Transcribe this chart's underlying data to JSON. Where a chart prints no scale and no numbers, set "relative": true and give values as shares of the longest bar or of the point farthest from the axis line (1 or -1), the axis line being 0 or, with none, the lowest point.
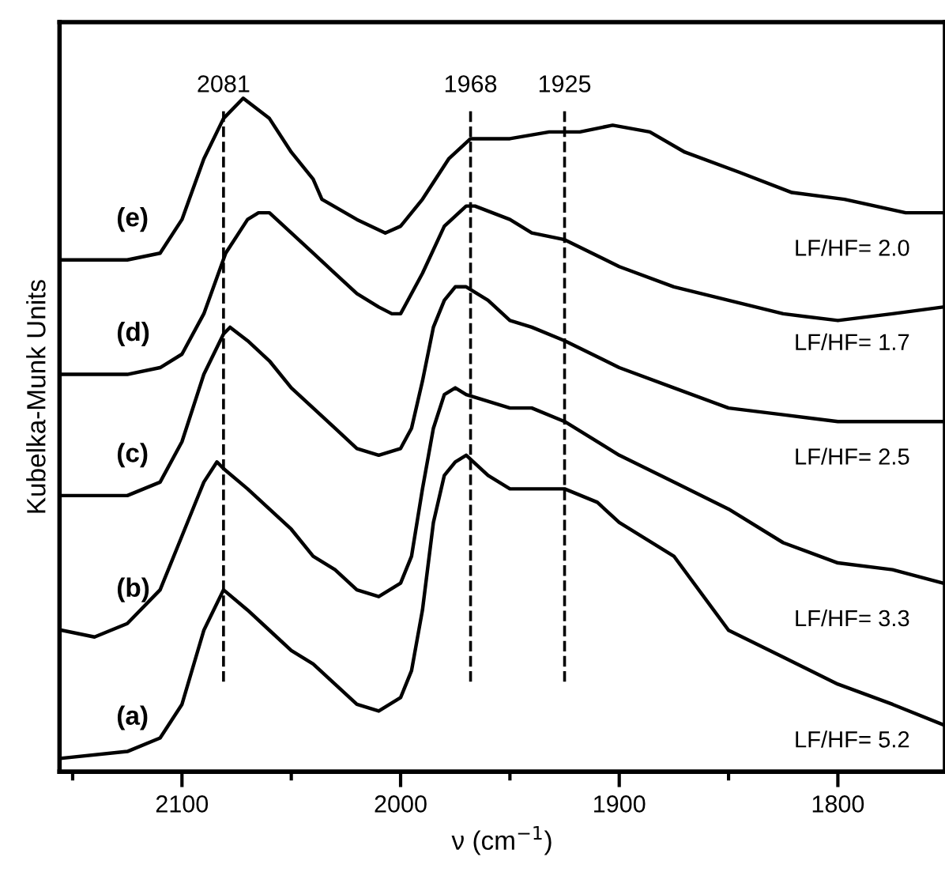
{
  "chart_data": {
    "type": "line",
    "relative": true,
    "xlabel": "ν (cm$^{−1}$)",
    "ylabel": "Kubelka-Munk Units",
    "xlim": [
      2156,
      1751
    ],
    "xticks": [
      {
        "value": 2150,
        "label": null
      },
      2100,
      {
        "value": 2050,
        "label": null
      },
      2000,
      {
        "value": 1950,
        "label": null
      },
      1900,
      {
        "value": 1850,
        "label": null
      },
      1800
    ],
    "tick_labels": "x",
    "grid": false,
    "legend": false,
    "marker": "none",
    "line_style": "solid",
    "series": [
      {
        "name": "(a)",
        "color": "#000000",
        "x": [
          2155,
          2125,
          2110,
          2100,
          2090,
          2081,
          2070,
          2060,
          2050,
          2040,
          2030,
          2020,
          2010,
          2000,
          1995,
          1990,
          1985,
          1980,
          1975,
          1970,
          1960,
          1950,
          1940,
          1925,
          1910,
          1900,
          1875,
          1850,
          1825,
          1800,
          1775,
          1752
        ],
        "values": [
          0.02,
          0.03,
          0.05,
          0.1,
          0.21,
          0.27,
          0.24,
          0.21,
          0.18,
          0.16,
          0.13,
          0.1,
          0.09,
          0.11,
          0.15,
          0.24,
          0.37,
          0.44,
          0.46,
          0.47,
          0.44,
          0.42,
          0.42,
          0.42,
          0.4,
          0.37,
          0.32,
          0.21,
          0.17,
          0.13,
          0.1,
          0.07
        ]
      },
      {
        "name": "(b)",
        "color": "#000000",
        "x": [
          2155,
          2140,
          2125,
          2110,
          2100,
          2090,
          2084,
          2081,
          2070,
          2060,
          2050,
          2040,
          2030,
          2020,
          2010,
          2000,
          1995,
          1990,
          1985,
          1980,
          1975,
          1970,
          1960,
          1950,
          1940,
          1925,
          1900,
          1875,
          1850,
          1825,
          1800,
          1775,
          1752
        ],
        "values": [
          0.21,
          0.2,
          0.22,
          0.27,
          0.35,
          0.43,
          0.46,
          0.45,
          0.42,
          0.39,
          0.36,
          0.32,
          0.3,
          0.27,
          0.26,
          0.28,
          0.32,
          0.42,
          0.51,
          0.56,
          0.57,
          0.56,
          0.55,
          0.54,
          0.54,
          0.52,
          0.47,
          0.43,
          0.39,
          0.34,
          0.31,
          0.3,
          0.28
        ]
      },
      {
        "name": "(c)",
        "color": "#000000",
        "x": [
          2155,
          2125,
          2110,
          2100,
          2090,
          2081,
          2078,
          2070,
          2060,
          2050,
          2040,
          2030,
          2020,
          2010,
          2000,
          1995,
          1990,
          1985,
          1980,
          1975,
          1970,
          1960,
          1950,
          1940,
          1925,
          1900,
          1875,
          1850,
          1825,
          1800,
          1775,
          1752
        ],
        "values": [
          0.41,
          0.41,
          0.43,
          0.49,
          0.59,
          0.65,
          0.66,
          0.64,
          0.61,
          0.57,
          0.54,
          0.51,
          0.48,
          0.47,
          0.48,
          0.51,
          0.58,
          0.66,
          0.7,
          0.72,
          0.72,
          0.7,
          0.67,
          0.66,
          0.64,
          0.6,
          0.57,
          0.54,
          0.53,
          0.52,
          0.52,
          0.52
        ]
      },
      {
        "name": "(d)",
        "color": "#000000",
        "x": [
          2155,
          2125,
          2110,
          2100,
          2090,
          2080,
          2070,
          2065,
          2060,
          2050,
          2040,
          2030,
          2020,
          2010,
          2004,
          2000,
          1990,
          1980,
          1970,
          1966,
          1950,
          1940,
          1925,
          1900,
          1875,
          1850,
          1825,
          1800,
          1775,
          1752
        ],
        "values": [
          0.59,
          0.59,
          0.6,
          0.62,
          0.68,
          0.77,
          0.82,
          0.83,
          0.83,
          0.8,
          0.77,
          0.74,
          0.71,
          0.69,
          0.68,
          0.68,
          0.74,
          0.81,
          0.84,
          0.84,
          0.82,
          0.8,
          0.79,
          0.75,
          0.72,
          0.7,
          0.68,
          0.67,
          0.68,
          0.69
        ]
      },
      {
        "name": "(e)",
        "color": "#000000",
        "x": [
          2155,
          2125,
          2110,
          2100,
          2090,
          2081,
          2072,
          2060,
          2050,
          2040,
          2036,
          2020,
          2007,
          2000,
          1990,
          1978,
          1968,
          1950,
          1932,
          1918,
          1903,
          1886,
          1870,
          1845,
          1821,
          1797,
          1769,
          1752
        ],
        "values": [
          0.76,
          0.76,
          0.77,
          0.82,
          0.91,
          0.97,
          1.0,
          0.97,
          0.92,
          0.88,
          0.85,
          0.82,
          0.8,
          0.81,
          0.85,
          0.91,
          0.94,
          0.94,
          0.95,
          0.95,
          0.96,
          0.95,
          0.92,
          0.89,
          0.86,
          0.85,
          0.83,
          0.83
        ]
      }
    ],
    "ref_lines": [
      {
        "axis": "x",
        "value": 2081,
        "label": "2081",
        "line_style": "dashed"
      },
      {
        "axis": "x",
        "value": 1968,
        "label": "1968",
        "line_style": "dashed"
      },
      {
        "axis": "x",
        "value": 1925,
        "label": "1925",
        "line_style": "dashed"
      }
    ],
    "annotations": [
      "LF/HF= 5.2",
      "LF/HF= 3.3",
      "LF/HF= 2.5",
      "LF/HF= 1.7",
      "LF/HF= 2.0"
    ]
  }
}
